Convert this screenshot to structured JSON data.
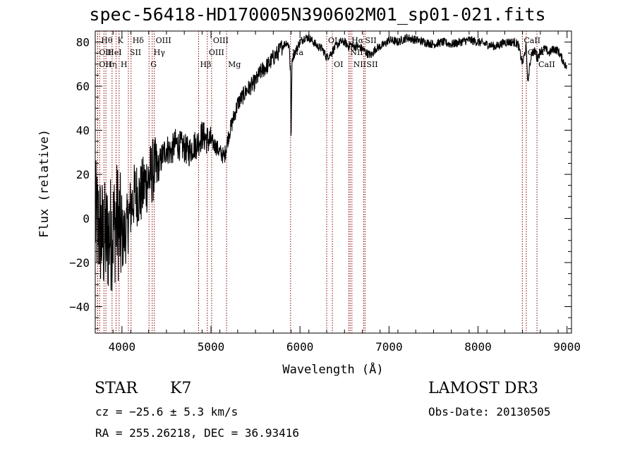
{
  "chart_data": {
    "type": "line",
    "title": "spec-56418-HD170005N390602M01_sp01-021.fits",
    "xlabel": "Wavelength (Å)",
    "ylabel": "Flux (relative)",
    "xlim": [
      3700,
      9050
    ],
    "ylim": [
      -52,
      85
    ],
    "xticks": [
      4000,
      5000,
      6000,
      7000,
      8000,
      9000
    ],
    "yticks": [
      -40,
      -20,
      0,
      20,
      40,
      60,
      80
    ],
    "grid": false,
    "line_color": "#000000",
    "marker_color": "#8b0000",
    "series": [
      {
        "x": [
          3700,
          3750,
          3800,
          3850,
          3900,
          3950,
          4000,
          4050,
          4100,
          4150,
          4200,
          4250,
          4300,
          4350,
          4400,
          4450,
          4500,
          4550,
          4600,
          4650,
          4700,
          4750,
          4800,
          4850,
          4900,
          4950,
          5000,
          5050,
          5100,
          5150,
          5200,
          5250,
          5300,
          5350,
          5400,
          5450,
          5500,
          5550,
          5600,
          5650,
          5700,
          5750,
          5800,
          5850,
          5880,
          5890,
          5895,
          5900,
          5910,
          5950,
          6000,
          6050,
          6100,
          6150,
          6200,
          6250,
          6300,
          6350,
          6400,
          6450,
          6500,
          6550,
          6562,
          6600,
          6650,
          6700,
          6750,
          6800,
          6850,
          6900,
          6950,
          7000,
          7100,
          7200,
          7300,
          7400,
          7500,
          7600,
          7700,
          7800,
          7900,
          8000,
          8100,
          8200,
          8300,
          8400,
          8450,
          8500,
          8540,
          8560,
          8600,
          8650,
          8662,
          8700,
          8750,
          8800,
          8850,
          8900,
          8950,
          9000
        ],
        "values": [
          0,
          -5,
          -10,
          -8,
          -5,
          0,
          -10,
          -5,
          5,
          12,
          10,
          15,
          18,
          22,
          22,
          28,
          32,
          30,
          34,
          33,
          32,
          30,
          33,
          34,
          38,
          36,
          35,
          33,
          30,
          28,
          38,
          45,
          52,
          55,
          58,
          60,
          62,
          66,
          68,
          70,
          73,
          75,
          78,
          80,
          78,
          68,
          70,
          31,
          72,
          76,
          80,
          82,
          82,
          80,
          78,
          77,
          73,
          75,
          78,
          80,
          80,
          78,
          79,
          78,
          78,
          77,
          75,
          74,
          77,
          78,
          79,
          81,
          80,
          82,
          81,
          80,
          79,
          80,
          79,
          80,
          81,
          80,
          79,
          78,
          80,
          80,
          79,
          70,
          78,
          62,
          75,
          76,
          72,
          76,
          77,
          75,
          77,
          76,
          72,
          68
        ]
      }
    ],
    "line_markers": [
      {
        "wl": 3750,
        "label": "Hθ",
        "row": 0
      },
      {
        "wl": 3727,
        "label": "OII",
        "row": 1
      },
      {
        "wl": 3727,
        "label": "OII",
        "row": 2
      },
      {
        "wl": 3798,
        "label": "Hη",
        "row": 2
      },
      {
        "wl": 3820,
        "label": "HeI",
        "row": 1
      },
      {
        "wl": 3889,
        "label": "",
        "row": -1
      },
      {
        "wl": 3934,
        "label": "K",
        "row": 0
      },
      {
        "wl": 3968,
        "label": "H",
        "row": 2
      },
      {
        "wl": 4072,
        "label": "SII",
        "row": 1
      },
      {
        "wl": 4102,
        "label": "Hδ",
        "row": 0
      },
      {
        "wl": 4304,
        "label": "G",
        "row": 2
      },
      {
        "wl": 4340,
        "label": "Hγ",
        "row": 1
      },
      {
        "wl": 4363,
        "label": "OIII",
        "row": 0
      },
      {
        "wl": 4861,
        "label": "Hβ",
        "row": 2
      },
      {
        "wl": 4959,
        "label": "OIII",
        "row": 1
      },
      {
        "wl": 5007,
        "label": "OIII",
        "row": 0
      },
      {
        "wl": 5175,
        "label": "Mg",
        "row": 2
      },
      {
        "wl": 5894,
        "label": "Na",
        "row": 1
      },
      {
        "wl": 6300,
        "label": "OI",
        "row": 0
      },
      {
        "wl": 6364,
        "label": "OI",
        "row": 2
      },
      {
        "wl": 6548,
        "label": "NII",
        "row": 1
      },
      {
        "wl": 6563,
        "label": "Hα",
        "row": 0
      },
      {
        "wl": 6583,
        "label": "NII",
        "row": 2
      },
      {
        "wl": 6716,
        "label": "SII",
        "row": 0
      },
      {
        "wl": 6731,
        "label": "SII",
        "row": 2
      },
      {
        "wl": 8498,
        "label": "CaII",
        "row": 0
      },
      {
        "wl": 8542,
        "label": "CaII",
        "row": 1
      },
      {
        "wl": 8662,
        "label": "CaII",
        "row": 2
      }
    ]
  },
  "info": {
    "object_class": "STAR",
    "subclass": "K7",
    "survey": "LAMOST DR3",
    "cz": "cz = −25.6 ± 5.3 km/s",
    "obs_date": "Obs-Date: 20130505",
    "coords": "RA = 255.26218, DEC =  36.93416"
  }
}
